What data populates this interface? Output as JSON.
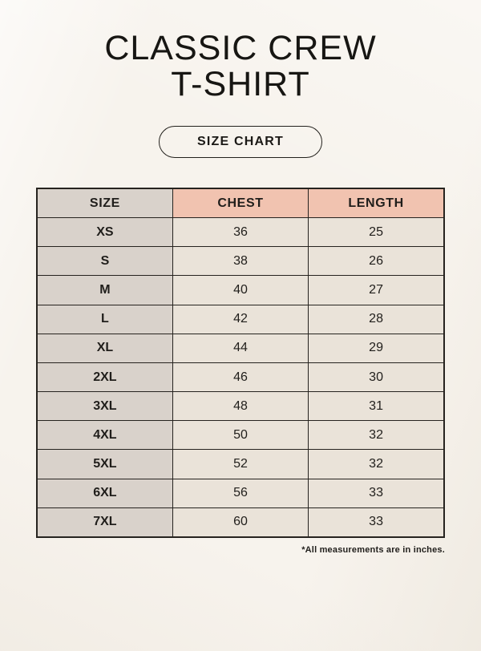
{
  "page": {
    "title_line1": "CLASSIC CREW",
    "title_line2": "T-SHIRT",
    "button_label": "SIZE CHART",
    "footnote": "*All measurements are in inches."
  },
  "colors": {
    "background": "#f7f3ed",
    "table_border": "#26231f",
    "size_column_bg": "#d9d2cb",
    "header_accent_bg": "#f1c3b0",
    "cell_bg": "#eae3d9",
    "text": "#1d1b18"
  },
  "size_chart": {
    "columns": [
      "SIZE",
      "CHEST",
      "LENGTH"
    ],
    "rows": [
      {
        "size": "XS",
        "chest": "36",
        "length": "25"
      },
      {
        "size": "S",
        "chest": "38",
        "length": "26"
      },
      {
        "size": "M",
        "chest": "40",
        "length": "27"
      },
      {
        "size": "L",
        "chest": "42",
        "length": "28"
      },
      {
        "size": "XL",
        "chest": "44",
        "length": "29"
      },
      {
        "size": "2XL",
        "chest": "46",
        "length": "30"
      },
      {
        "size": "3XL",
        "chest": "48",
        "length": "31"
      },
      {
        "size": "4XL",
        "chest": "50",
        "length": "32"
      },
      {
        "size": "5XL",
        "chest": "52",
        "length": "32"
      },
      {
        "size": "6XL",
        "chest": "56",
        "length": "33"
      },
      {
        "size": "7XL",
        "chest": "60",
        "length": "33"
      }
    ]
  }
}
